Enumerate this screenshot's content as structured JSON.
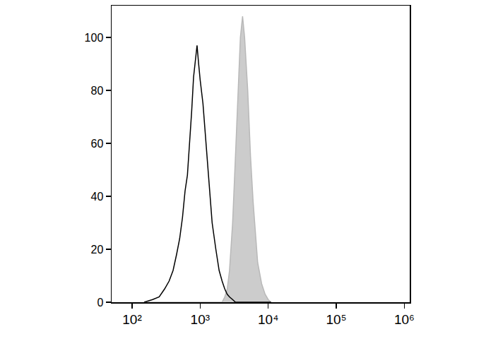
{
  "chart_data": {
    "type": "line",
    "log": "x",
    "grid": false,
    "x": [
      150,
      200,
      250,
      300,
      350,
      400,
      450,
      500,
      550,
      600,
      650,
      700,
      750,
      800,
      850,
      900,
      950,
      1000,
      1100,
      1200,
      1300,
      1400,
      1500,
      1700,
      1900,
      2100,
      2300,
      2500,
      2700,
      3000,
      3300,
      3600,
      3900,
      4200,
      4500,
      5000,
      5500,
      6000,
      6500,
      7000,
      8000,
      9000,
      10000,
      11000
    ],
    "series": [
      {
        "type": "line",
        "color": "#000000",
        "values": [
          0,
          1,
          2,
          5,
          8,
          12,
          18,
          24,
          32,
          42,
          48,
          60,
          72,
          85,
          92,
          97,
          90,
          84,
          75,
          62,
          50,
          40,
          30,
          20,
          12,
          8,
          5,
          3,
          2,
          1,
          0,
          0,
          0,
          0,
          0,
          0,
          0,
          0,
          0,
          0,
          0,
          0,
          0,
          0
        ]
      },
      {
        "type": "area",
        "color": "#cccccc",
        "values": [
          0,
          0,
          0,
          0,
          0,
          0,
          0,
          0,
          0,
          0,
          0,
          0,
          0,
          0,
          0,
          0,
          0,
          0,
          0,
          0,
          0,
          0,
          0,
          0,
          0,
          0,
          2,
          5,
          12,
          30,
          55,
          80,
          100,
          108,
          100,
          80,
          55,
          38,
          25,
          15,
          7,
          3,
          1,
          0
        ]
      }
    ],
    "xlim": [
      50,
      1200000
    ],
    "xticks": [
      {
        "value": 100,
        "label": "10²"
      },
      {
        "value": 1000,
        "label": "10³"
      },
      {
        "value": 10000,
        "label": "10⁴"
      },
      {
        "value": 100000,
        "label": "10⁵"
      },
      {
        "value": 1000000,
        "label": "10⁶"
      }
    ],
    "ylim": [
      0,
      112
    ],
    "yticks": [
      0,
      20,
      40,
      60,
      80,
      100
    ]
  }
}
